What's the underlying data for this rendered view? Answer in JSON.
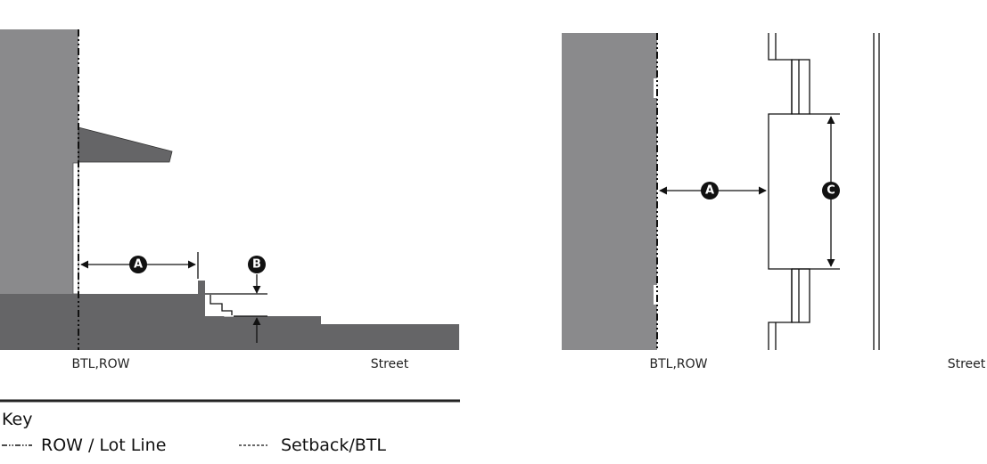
{
  "section_diagram": {
    "dimension_a": "A",
    "dimension_b": "B",
    "left_label": "BTL,ROW",
    "right_label": "Street"
  },
  "plan_diagram": {
    "dimension_a": "A",
    "dimension_c": "C",
    "left_label": "BTL,ROW",
    "right_label": "Street"
  },
  "key": {
    "title": "Key",
    "items": [
      {
        "label": "ROW / Lot Line"
      },
      {
        "label": "Setback/BTL"
      }
    ]
  }
}
